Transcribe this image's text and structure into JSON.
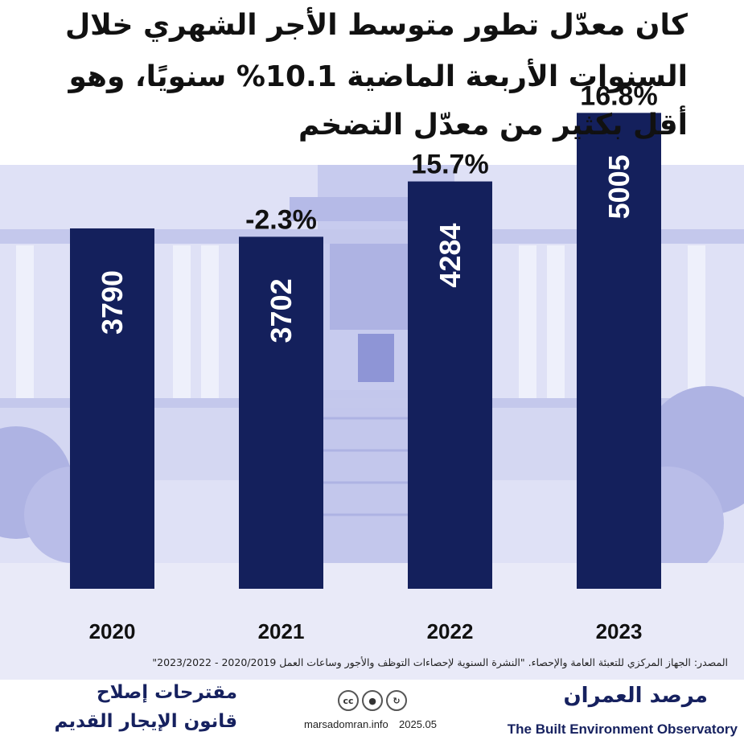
{
  "title": {
    "line1": "كان معدّل تطور متوسط الأجر الشهري خلال",
    "line2": "السنوات الأربعة الماضية 10.1% سنويًا، وهو",
    "line3": "أقل بكثير من معدّل التضخم"
  },
  "chart_data": {
    "type": "bar",
    "categories": [
      "2020",
      "2021",
      "2022",
      "2023"
    ],
    "values": [
      3790,
      3702,
      4284,
      5005
    ],
    "growth_labels": [
      "",
      "-2.3%",
      "15.7%",
      "16.8%"
    ],
    "ylim": [
      0,
      5600
    ],
    "xlabel": "",
    "ylabel": "",
    "bar_color": "#14205c"
  },
  "footer": {
    "source": "المصدر: الجهاز المركزي للتعبئة العامة والإحصاء. \"النشرة السنوية لإحصاءات التوظف والأجور وساعات العمل 2020/2019 - 2023/2022\"",
    "campaign_line1": "مقترحات إصلاح",
    "campaign_line2": "قانون الإيجار القديم",
    "license_icons": [
      "cc",
      "by",
      "nc"
    ],
    "website": "marsadomran.info",
    "date": "2025.05",
    "org_arabic": "مرصد العمران",
    "org_english": "The Built Environment Observatory"
  },
  "colors": {
    "navy": "#14205c",
    "background_tint": "#c9ccef"
  }
}
